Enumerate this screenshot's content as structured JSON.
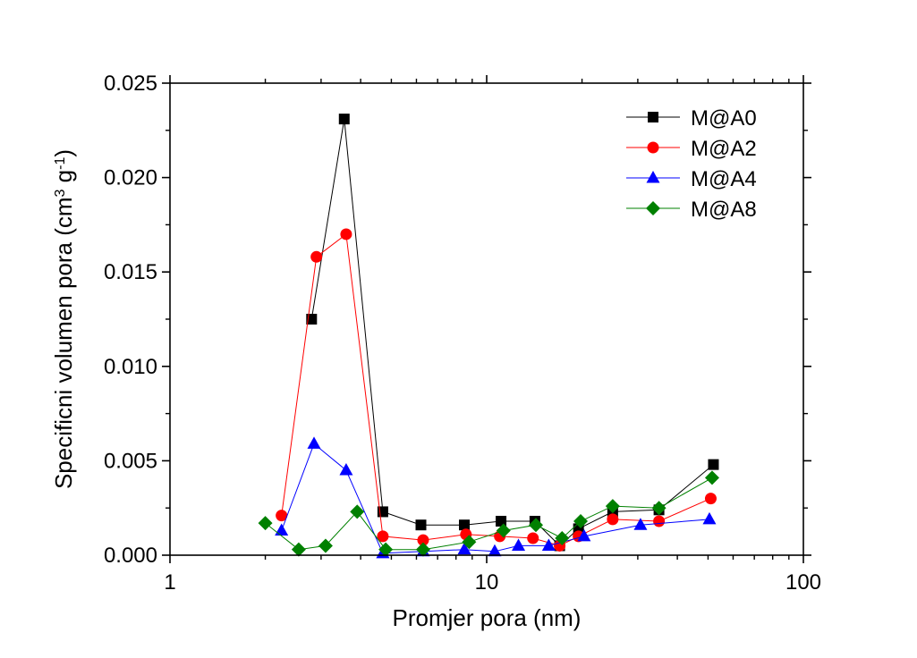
{
  "chart_data": {
    "type": "scatter",
    "xlabel": "Promjer pora (nm)",
    "ylabel": "Specificni volumen pora (cm3 g-1)",
    "ylabel_parts": {
      "main": "Specificni volumen pora (cm",
      "sup1": "3",
      "mid": " g",
      "sup2": "-1",
      "end": ")"
    },
    "x_scale": "log",
    "xlim": [
      1,
      100
    ],
    "ylim": [
      0,
      0.025
    ],
    "x_ticks": [
      1,
      10,
      100
    ],
    "x_tick_labels": [
      "1",
      "10",
      "100"
    ],
    "y_ticks": [
      0,
      0.005,
      0.01,
      0.015,
      0.02,
      0.025
    ],
    "y_tick_labels": [
      "0.000",
      "0.005",
      "0.010",
      "0.015",
      "0.020",
      "0.025"
    ],
    "grid": false,
    "legend_position": "top-right",
    "series": [
      {
        "name": "M@A0",
        "color": "#000000",
        "marker": "square",
        "x": [
          2.8,
          3.55,
          4.7,
          6.2,
          8.5,
          11.1,
          14.2,
          17,
          19.5,
          25,
          35,
          52
        ],
        "y": [
          0.0125,
          0.0231,
          0.0023,
          0.0016,
          0.0016,
          0.0018,
          0.0018,
          0.0005,
          0.0014,
          0.0023,
          0.0024,
          0.0048
        ]
      },
      {
        "name": "M@A2",
        "color": "#ff0000",
        "marker": "circle",
        "x": [
          2.25,
          2.9,
          3.6,
          4.7,
          6.3,
          8.6,
          11,
          14,
          17,
          19.5,
          25,
          35,
          51
        ],
        "y": [
          0.0021,
          0.0158,
          0.017,
          0.001,
          0.0008,
          0.0011,
          0.001,
          0.0009,
          0.0005,
          0.001,
          0.0019,
          0.0018,
          0.003
        ]
      },
      {
        "name": "M@A4",
        "color": "#0000ff",
        "marker": "triangle",
        "x": [
          2.25,
          2.85,
          3.6,
          4.7,
          6.3,
          8.5,
          10.6,
          12.6,
          15.7,
          20.3,
          30.6,
          50.5
        ],
        "y": [
          0.0013,
          0.0059,
          0.0045,
          0.0001,
          0.0002,
          0.0003,
          0.0002,
          0.0005,
          0.0005,
          0.001,
          0.0016,
          0.0019
        ]
      },
      {
        "name": "M@A8",
        "color": "#008000",
        "marker": "diamond",
        "x": [
          2.0,
          2.55,
          3.1,
          3.9,
          4.8,
          6.3,
          8.8,
          11.3,
          14.3,
          17.3,
          19.8,
          25,
          35,
          51.5
        ],
        "y": [
          0.0017,
          0.0003,
          0.0005,
          0.0023,
          0.0003,
          0.0003,
          0.0007,
          0.0013,
          0.0016,
          0.0009,
          0.0018,
          0.0026,
          0.0025,
          0.0041
        ]
      }
    ]
  }
}
